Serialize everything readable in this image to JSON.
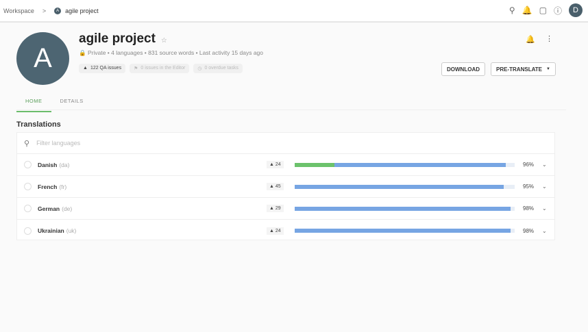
{
  "breadcrumb": {
    "workspace": "Workspace",
    "separator": ">",
    "project_initial": "A",
    "project": "agile project"
  },
  "user_initial": "D",
  "project": {
    "initial": "A",
    "title": "agile project",
    "meta": "Private • 4 languages  • 831 source words  • Last activity 15 days ago",
    "chips": [
      "122 QA issues",
      "0 issues in the Editor",
      "0 overdue tasks"
    ]
  },
  "buttons": {
    "download": "DOWNLOAD",
    "pretranslate": "PRE-TRANSLATE"
  },
  "tabs": [
    "HOME",
    "DETAILS"
  ],
  "section_title": "Translations",
  "filter_placeholder": "Filter languages",
  "colors": {
    "translated": "#77a5e3",
    "approved": "#6cc26c",
    "accent": "#6bbd6b"
  },
  "languages": [
    {
      "name": "Danish",
      "code": "(da)",
      "qa": "24",
      "percent": "96%",
      "translated": 96,
      "approved": 18
    },
    {
      "name": "French",
      "code": "(fr)",
      "qa": "45",
      "percent": "95%",
      "translated": 95,
      "approved": 0
    },
    {
      "name": "German",
      "code": "(de)",
      "qa": "29",
      "percent": "98%",
      "translated": 98,
      "approved": 0
    },
    {
      "name": "Ukrainian",
      "code": "(uk)",
      "qa": "24",
      "percent": "98%",
      "translated": 98,
      "approved": 0
    }
  ]
}
